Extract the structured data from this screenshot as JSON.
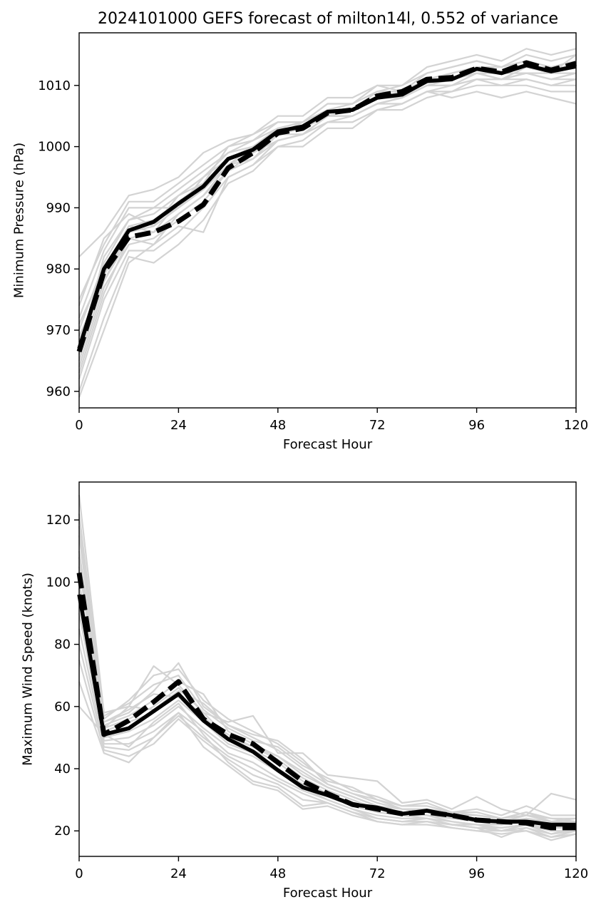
{
  "title": "2024101000 GEFS forecast of milton14l, 0.552 of variance",
  "chart_data": [
    {
      "type": "line",
      "xlabel": "Forecast Hour",
      "ylabel": "Minimum Pressure (hPa)",
      "xlim": [
        0,
        120
      ],
      "ylim": [
        957.3,
        1018.6
      ],
      "xticks": [
        0,
        24,
        48,
        72,
        96,
        120
      ],
      "yticks": [
        960,
        970,
        980,
        990,
        1000,
        1010
      ],
      "grid": false,
      "x": [
        0,
        6,
        12,
        18,
        24,
        30,
        36,
        42,
        48,
        54,
        60,
        66,
        72,
        78,
        84,
        90,
        96,
        102,
        108,
        114,
        120
      ],
      "series": [
        {
          "style": "solid",
          "color": "#000000",
          "values": [
            967,
            980,
            986.3,
            987.7,
            990.7,
            993.5,
            998,
            999.5,
            1002.5,
            1003.3,
            1005.7,
            1006,
            1008,
            1008.5,
            1010.7,
            1011,
            1012.7,
            1012,
            1013.3,
            1012.3,
            1013.1
          ]
        },
        {
          "style": "dashed",
          "color": "#000000",
          "values": [
            966.5,
            979.5,
            985.2,
            986,
            987.8,
            990.5,
            996.5,
            999,
            1002.2,
            1003,
            1005.5,
            1006,
            1008.3,
            1009,
            1011,
            1011.3,
            1012.8,
            1012.2,
            1013.7,
            1012.5,
            1013.6
          ]
        },
        {
          "style": "member",
          "color": "#d3d3d3",
          "values": [
            982,
            986,
            992,
            993,
            995,
            999,
            1001,
            1002,
            1005,
            1005,
            1008,
            1008,
            1010,
            1010,
            1013,
            1014,
            1015,
            1014,
            1016,
            1015,
            1016
          ]
        },
        {
          "style": "member",
          "color": "#d3d3d3",
          "values": [
            975,
            984,
            991,
            991,
            994,
            997,
            1000,
            1002,
            1004,
            1004,
            1007,
            1007,
            1009,
            1010,
            1012,
            1013,
            1014,
            1013,
            1015,
            1014,
            1015
          ]
        },
        {
          "style": "member",
          "color": "#d3d3d3",
          "values": [
            972,
            983,
            990,
            990,
            993,
            996,
            999,
            1001,
            1003,
            1004,
            1006,
            1007,
            1009,
            1009,
            1011,
            1012,
            1013,
            1013,
            1014,
            1013,
            1014
          ]
        },
        {
          "style": "member",
          "color": "#d3d3d3",
          "values": [
            970,
            981,
            988,
            989,
            992,
            995,
            998,
            1000,
            1003,
            1003,
            1006,
            1006,
            1008,
            1009,
            1011,
            1011,
            1013,
            1012,
            1013,
            1013,
            1013
          ]
        },
        {
          "style": "member",
          "color": "#d3d3d3",
          "values": [
            968,
            980,
            987,
            988,
            991,
            994,
            998,
            999,
            1002,
            1003,
            1005,
            1006,
            1008,
            1008,
            1010,
            1011,
            1012,
            1012,
            1013,
            1012,
            1013
          ]
        },
        {
          "style": "member",
          "color": "#d3d3d3",
          "values": [
            966,
            979,
            986,
            987,
            990,
            993,
            997,
            999,
            1002,
            1002,
            1005,
            1005,
            1007,
            1008,
            1010,
            1010,
            1012,
            1011,
            1012,
            1011,
            1012
          ]
        },
        {
          "style": "member",
          "color": "#d3d3d3",
          "values": [
            964,
            977,
            984,
            985,
            988,
            991,
            996,
            998,
            1001,
            1002,
            1004,
            1005,
            1007,
            1007,
            1009,
            1010,
            1011,
            1011,
            1012,
            1011,
            1011
          ]
        },
        {
          "style": "member",
          "color": "#d3d3d3",
          "values": [
            962,
            975,
            983,
            983,
            986,
            990,
            995,
            997,
            1000,
            1001,
            1004,
            1004,
            1006,
            1007,
            1009,
            1009,
            1011,
            1010,
            1011,
            1010,
            1010
          ]
        },
        {
          "style": "member",
          "color": "#d3d3d3",
          "values": [
            960,
            972,
            982,
            981,
            984,
            988,
            994,
            996,
            1000,
            1000,
            1003,
            1003,
            1006,
            1006,
            1008,
            1009,
            1010,
            1010,
            1010,
            1009,
            1009
          ]
        },
        {
          "style": "member",
          "color": "#d3d3d3",
          "values": [
            959,
            970,
            981,
            984,
            987,
            986,
            995,
            997,
            1001,
            1002,
            1004,
            1004,
            1006,
            1007,
            1009,
            1008,
            1009,
            1008,
            1009,
            1008,
            1007
          ]
        },
        {
          "style": "member",
          "color": "#d3d3d3",
          "values": [
            974,
            985,
            989,
            987,
            992,
            994,
            1000,
            1001,
            1004,
            1004,
            1007,
            1007,
            1010,
            1009,
            1012,
            1013,
            1014,
            1013,
            1014,
            1012,
            1015
          ]
        },
        {
          "style": "member",
          "color": "#d3d3d3",
          "values": [
            969,
            978,
            985,
            984,
            989,
            992,
            997,
            1000,
            1002,
            1004,
            1006,
            1006,
            1008,
            1009,
            1011,
            1012,
            1013,
            1012,
            1012,
            1012,
            1014
          ]
        },
        {
          "style": "member",
          "color": "#d3d3d3",
          "values": [
            967,
            982,
            988,
            990,
            990,
            995,
            999,
            1000,
            1003,
            1004,
            1006,
            1006,
            1009,
            1009,
            1011,
            1011,
            1012,
            1011,
            1012,
            1011,
            1012
          ]
        },
        {
          "style": "member",
          "color": "#d3d3d3",
          "values": [
            971,
            980,
            987,
            986,
            991,
            993,
            997,
            998,
            1002,
            1003,
            1005,
            1005,
            1007,
            1008,
            1010,
            1011,
            1012,
            1012,
            1013,
            1012,
            1012
          ]
        },
        {
          "style": "member",
          "color": "#d3d3d3",
          "values": [
            963,
            976,
            985,
            986,
            989,
            992,
            996,
            999,
            1001,
            1002,
            1005,
            1005,
            1007,
            1008,
            1010,
            1010,
            1011,
            1011,
            1011,
            1010,
            1011
          ]
        },
        {
          "style": "member",
          "color": "#d3d3d3",
          "values": [
            965,
            978,
            986,
            988,
            990,
            994,
            998,
            1000,
            1002,
            1003,
            1005,
            1006,
            1008,
            1008,
            1010,
            1011,
            1012,
            1011,
            1013,
            1012,
            1013
          ]
        }
      ]
    },
    {
      "type": "line",
      "xlabel": "Forecast Hour",
      "ylabel": "Maximum Wind Speed (knots)",
      "xlim": [
        0,
        120
      ],
      "ylim": [
        11.8,
        132.2
      ],
      "xticks": [
        0,
        24,
        48,
        72,
        96,
        120
      ],
      "yticks": [
        20,
        40,
        60,
        80,
        100,
        120
      ],
      "grid": false,
      "x": [
        0,
        6,
        12,
        18,
        24,
        30,
        36,
        42,
        48,
        54,
        60,
        66,
        72,
        78,
        84,
        90,
        96,
        102,
        108,
        114,
        120
      ],
      "series": [
        {
          "style": "solid",
          "color": "#000000",
          "values": [
            96,
            51,
            53,
            58.5,
            64,
            55.5,
            49.5,
            45.5,
            39.5,
            34,
            31.5,
            28.5,
            27.5,
            25.5,
            26.5,
            25,
            23.5,
            23,
            23,
            22,
            22
          ]
        },
        {
          "style": "dashed",
          "color": "#000000",
          "values": [
            103,
            51,
            55.5,
            61.5,
            68,
            56,
            51,
            48,
            42,
            36,
            32,
            28.5,
            27,
            25.5,
            26,
            25,
            23.5,
            23,
            22.5,
            21,
            21
          ]
        },
        {
          "style": "member",
          "color": "#d3d3d3",
          "values": [
            128,
            58,
            60,
            73,
            67,
            58,
            55,
            57,
            45,
            45,
            38,
            37,
            36,
            29,
            30,
            27,
            31,
            27,
            25,
            32,
            30
          ]
        },
        {
          "style": "member",
          "color": "#d3d3d3",
          "values": [
            122,
            56,
            62,
            70,
            72,
            62,
            56,
            52,
            48,
            42,
            36,
            34,
            30,
            28,
            28,
            26,
            27,
            25,
            28,
            25,
            25
          ]
        },
        {
          "style": "member",
          "color": "#d3d3d3",
          "values": [
            115,
            55,
            58,
            65,
            74,
            60,
            54,
            50,
            46,
            40,
            35,
            32,
            29,
            27,
            27,
            25,
            25,
            24,
            26,
            24,
            24
          ]
        },
        {
          "style": "member",
          "color": "#d3d3d3",
          "values": [
            110,
            54,
            57,
            62,
            68,
            64,
            52,
            48,
            44,
            38,
            34,
            31,
            28,
            26,
            26,
            24,
            24,
            23,
            25,
            23,
            23
          ]
        },
        {
          "style": "member",
          "color": "#d3d3d3",
          "values": [
            105,
            53,
            56,
            60,
            66,
            58,
            50,
            47,
            43,
            37,
            33,
            30,
            27,
            26,
            25,
            24,
            23,
            22,
            24,
            22,
            22
          ]
        },
        {
          "style": "member",
          "color": "#d3d3d3",
          "values": [
            100,
            52,
            55,
            58,
            64,
            57,
            49,
            46,
            42,
            36,
            32,
            29,
            27,
            25,
            25,
            23,
            22,
            22,
            23,
            22,
            21
          ]
        },
        {
          "style": "member",
          "color": "#d3d3d3",
          "values": [
            95,
            50,
            52,
            56,
            62,
            55,
            48,
            45,
            40,
            35,
            31,
            28,
            26,
            25,
            24,
            23,
            22,
            21,
            22,
            21,
            21
          ]
        },
        {
          "style": "member",
          "color": "#d3d3d3",
          "values": [
            90,
            49,
            50,
            54,
            60,
            53,
            47,
            44,
            39,
            34,
            30,
            27,
            25,
            24,
            24,
            22,
            21,
            21,
            22,
            20,
            20
          ]
        },
        {
          "style": "member",
          "color": "#d3d3d3",
          "values": [
            85,
            48,
            48,
            52,
            58,
            52,
            45,
            42,
            37,
            33,
            30,
            27,
            24,
            23,
            23,
            22,
            21,
            20,
            21,
            19,
            20
          ]
        },
        {
          "style": "member",
          "color": "#d3d3d3",
          "values": [
            80,
            47,
            46,
            50,
            57,
            50,
            44,
            40,
            36,
            32,
            29,
            26,
            24,
            23,
            23,
            21,
            20,
            20,
            20,
            18,
            19
          ]
        },
        {
          "style": "member",
          "color": "#d3d3d3",
          "values": [
            75,
            46,
            44,
            48,
            56,
            49,
            43,
            38,
            35,
            30,
            29,
            26,
            23,
            22,
            22,
            21,
            20,
            19,
            20,
            17,
            19
          ]
        },
        {
          "style": "member",
          "color": "#d3d3d3",
          "values": [
            68,
            45,
            42,
            50,
            58,
            47,
            41,
            35,
            33,
            27,
            28,
            25,
            23,
            22,
            23,
            22,
            21,
            18,
            21,
            18,
            20
          ]
        },
        {
          "style": "member",
          "color": "#d3d3d3",
          "values": [
            60,
            51,
            47,
            55,
            61,
            51,
            42,
            36,
            34,
            28,
            29,
            26,
            24,
            23,
            24,
            22,
            22,
            20,
            22,
            19,
            21
          ]
        },
        {
          "style": "member",
          "color": "#d3d3d3",
          "values": [
            118,
            57,
            61,
            67,
            70,
            59,
            53,
            49,
            47,
            41,
            37,
            33,
            31,
            28,
            29,
            26,
            26,
            24,
            26,
            23,
            24
          ]
        },
        {
          "style": "member",
          "color": "#d3d3d3",
          "values": [
            98,
            55,
            59,
            64,
            63,
            56,
            51,
            47,
            44,
            39,
            34,
            31,
            28,
            27,
            26,
            25,
            24,
            23,
            24,
            23,
            22
          ]
        },
        {
          "style": "member",
          "color": "#d3d3d3",
          "values": [
            108,
            53,
            60,
            59,
            65,
            61,
            54,
            51,
            49,
            43,
            35,
            32,
            30,
            27,
            27,
            26,
            25,
            24,
            25,
            24,
            23
          ]
        }
      ]
    }
  ]
}
